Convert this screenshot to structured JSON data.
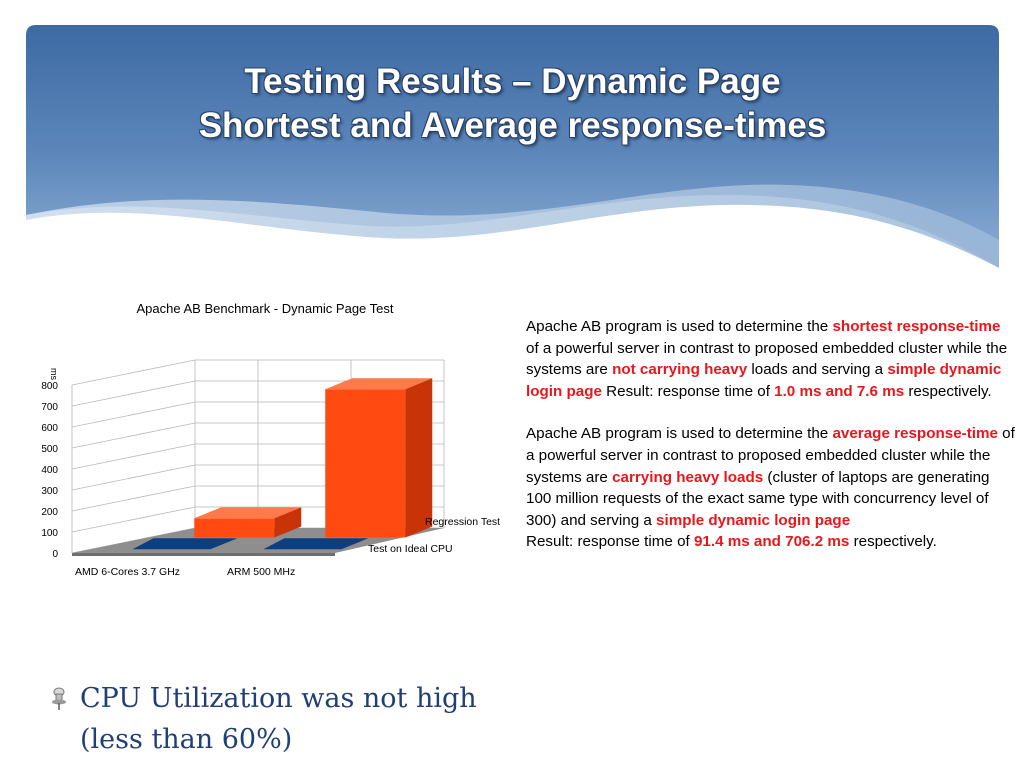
{
  "slide": {
    "title_line1": "Testing Results – Dynamic Page",
    "title_line2": "Shortest and Average response-times"
  },
  "paragraph1": {
    "t1": "Apache AB program is used to determine the ",
    "h1": "shortest response-time",
    "t2": " of a powerful server in contrast to proposed embedded cluster while the systems are ",
    "h2": "not carrying heavy",
    "t3": " loads and serving a ",
    "h3": "simple dynamic login page",
    "t4": " Result: response time of ",
    "h4": "1.0 ms and 7.6 ms",
    "t5": " respectively."
  },
  "paragraph2": {
    "t1": "Apache AB program is used to determine the ",
    "h1": "average response-time",
    "t2": " of a powerful server in contrast to proposed embedded cluster while the systems are ",
    "h2": "carrying heavy loads",
    "t3": " (cluster of laptops are generating 100 million requests of the exact same type with concurrency level of 300) and serving a ",
    "h3": "simple dynamic login page",
    "t4": "Result: response time of ",
    "h4": "91.4 ms and 706.2 ms",
    "t5": " respectively."
  },
  "bullet": {
    "text": "CPU Utilization was not high (less than 60%)"
  },
  "colors": {
    "header_dark": "#3d6aa3",
    "header_light": "#a8c4e2",
    "highlight": "#e8171c",
    "bar_front": "#ff4a12",
    "bar_top": "#ff7a4a",
    "bar_side": "#c93308",
    "baseline_bar": "#0d3f80",
    "floor": "#8e8e8e"
  },
  "chart_data": {
    "type": "bar",
    "title": "Apache AB Benchmark - Dynamic Page Test",
    "ylabel": "ms",
    "xlabel": "",
    "ylim": [
      0,
      800
    ],
    "yticks": [
      0,
      100,
      200,
      300,
      400,
      500,
      600,
      700,
      800
    ],
    "categories": [
      "AMD 6-Cores 3.7 GHz",
      "ARM 500 MHz"
    ],
    "series": [
      {
        "name": "Regression Test",
        "values": [
          91.4,
          706.2
        ]
      },
      {
        "name": "Test on Ideal CPU",
        "values": [
          1.0,
          7.6
        ]
      }
    ],
    "grid": true,
    "style": "3d"
  }
}
